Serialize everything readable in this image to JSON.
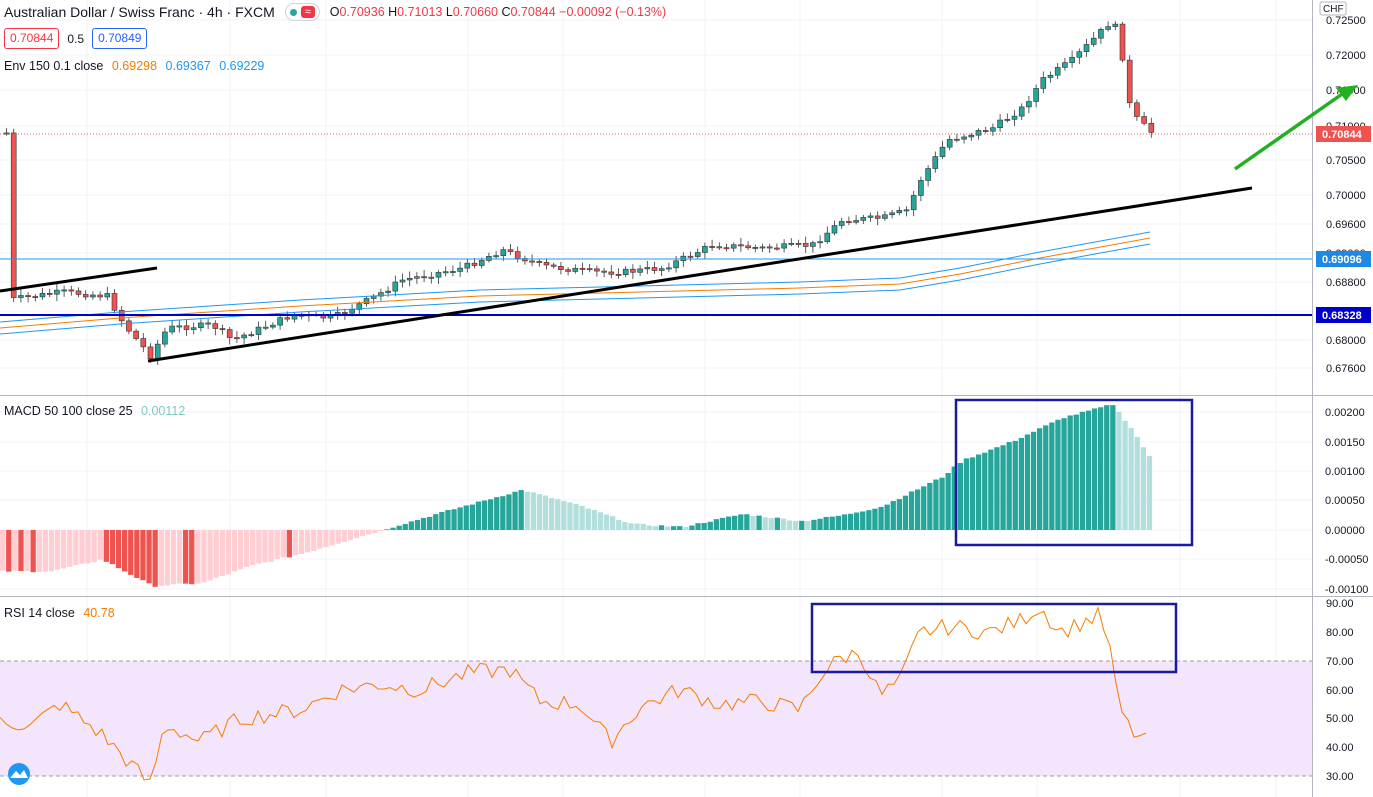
{
  "header": {
    "symbol": "Australian Dollar / Swiss Franc · 4h · FXCM",
    "ohlc": {
      "o_label": "O",
      "o": "0.70936",
      "h_label": "H",
      "h": "0.71013",
      "l_label": "L",
      "l": "0.70660",
      "c_label": "C",
      "c": "0.70844",
      "change": "−0.00092 (−0.13%)"
    },
    "sell_price": "0.70844",
    "spread": "0.5",
    "buy_price": "0.70849",
    "currency_badge": "CHF"
  },
  "indicators": {
    "env": {
      "label": "Env 150 0.1 close",
      "v1": "0.69298",
      "v2": "0.69367",
      "v3": "0.69229"
    },
    "macd": {
      "label": "MACD 50 100 close 25",
      "value": "0.00112"
    },
    "rsi": {
      "label": "RSI 14 close",
      "value": "40.78"
    }
  },
  "price_axis": {
    "ticks": [
      "0.72500",
      "0.72000",
      "0.71500",
      "0.71000",
      "0.70500",
      "0.70000",
      "0.69600",
      "0.69000",
      "0.68800",
      "0.68400",
      "0.68000",
      "0.67600"
    ],
    "last_price_tag": "0.70844",
    "level_tags": [
      "0.69096",
      "0.68328"
    ]
  },
  "macd_axis": {
    "ticks": [
      "0.00200",
      "0.00150",
      "0.00100",
      "0.00050",
      "0.00000",
      "-0.00050",
      "-0.00100"
    ]
  },
  "rsi_axis": {
    "ticks": [
      "90.00",
      "80.00",
      "70.00",
      "60.00",
      "50.00",
      "40.00",
      "30.00"
    ]
  },
  "colors": {
    "up": "#26a69a",
    "down": "#ef5350",
    "macd_up": "#26a69a",
    "macd_fade": "#b2dfdb",
    "macd_neg": "#ef5350",
    "macd_neg_fade": "#ffcdd2",
    "rsi": "#f57c00",
    "rsi_band": "#f3e5fc",
    "level_line": "#0000cc",
    "level_line2": "#2196f3",
    "trend": "#000000",
    "arrow": "#22b022",
    "box": "#1a1aa0"
  },
  "icons": {
    "logo": "tradingview-logo-icon",
    "market_status": "market-open-dot-icon",
    "replay": "wave-icon"
  }
}
